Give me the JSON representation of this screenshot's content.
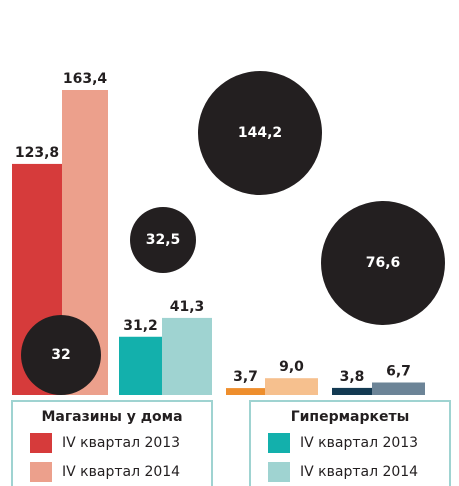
{
  "chart_data": {
    "type": "bar",
    "categories": [
      "Магазины у дома",
      "Гипермаркеты",
      null,
      null
    ],
    "series": [
      {
        "name": "IV квартал 2013",
        "colors": [
          "#d63b3b",
          "#13b0ac",
          "#ee8e2d",
          "#133a52"
        ],
        "values": [
          123.8,
          31.2,
          3.7,
          3.8
        ],
        "value_labels": [
          "123,8",
          "31,2",
          "3,7",
          "3,8"
        ]
      },
      {
        "name": "IV квартал 2014",
        "colors": [
          "#eca08c",
          "#9fd3d1",
          "#f6c08e",
          "#6c8497"
        ],
        "values": [
          163.4,
          41.3,
          9.0,
          6.7
        ],
        "value_labels": [
          "163,4",
          "41,3",
          "9,0",
          "6,7"
        ]
      }
    ],
    "bubbles": {
      "color": "#231f20",
      "values": [
        32,
        32.5,
        144.2,
        76.6
      ],
      "value_labels": [
        "32",
        "32,5",
        "144,2",
        "76,6"
      ]
    }
  }
}
